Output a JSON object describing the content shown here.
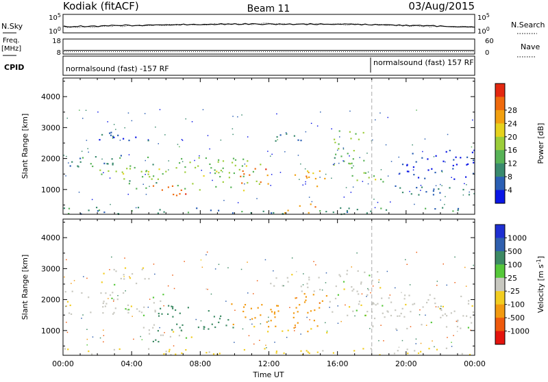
{
  "header": {
    "radar": "Kodiak (fitACF)",
    "beam": "Beam 11",
    "date": "03/Aug/2015"
  },
  "top_panel": {
    "left_label": "N.Sky",
    "left_ticks": [
      "10^5",
      "10^0"
    ],
    "right_ticks": [
      "10^5",
      "10^0"
    ],
    "right_label": "N.Search"
  },
  "freq_panel": {
    "left_label_1": "Freq.",
    "left_label_2": "[MHz]",
    "left_ticks": [
      "18",
      "8"
    ],
    "right_ticks": [
      "60",
      "0"
    ],
    "right_label": "Nave"
  },
  "cpid_panel": {
    "label": "CPID",
    "program_1": "normalsound (fast) -157 RF",
    "program_2": "normalsound (fast) 157 RF"
  },
  "chart_data": [
    {
      "type": "heatmap",
      "quantity": "Power",
      "ylabel": "Slant Range [km]",
      "xlabel": "",
      "ylim": [
        200,
        4600
      ],
      "xlim": [
        0,
        24
      ],
      "yticks": [
        "1000",
        "2000",
        "3000",
        "4000"
      ],
      "colorbar_label": "Power [dB]",
      "colorbar_ticks": [
        "4",
        "8",
        "12",
        "16",
        "20",
        "24",
        "28"
      ],
      "colorbar_colors": [
        "#0a16e6",
        "#2b5fb4",
        "#3a8a6e",
        "#58b357",
        "#9ccd3a",
        "#e6d21e",
        "#f2a010",
        "#ef6a0d",
        "#e42810"
      ],
      "bands": [
        {
          "t0": 0.0,
          "t1": 5.5,
          "r0": 1700,
          "r1": 2150,
          "v": 10
        },
        {
          "t0": 1.2,
          "t1": 5.8,
          "r0": 1350,
          "r1": 1750,
          "v": 16
        },
        {
          "t0": 3.5,
          "t1": 5.5,
          "r0": 1050,
          "r1": 1350,
          "v": 12
        },
        {
          "t0": 5.2,
          "t1": 7.2,
          "r0": 650,
          "r1": 1150,
          "v": 27
        },
        {
          "t0": 4.2,
          "t1": 6.2,
          "r0": 1350,
          "r1": 1700,
          "v": 14
        },
        {
          "t0": 6.5,
          "t1": 11.5,
          "r0": 950,
          "r1": 2050,
          "v": 15
        },
        {
          "t0": 10.2,
          "t1": 12.2,
          "r0": 1100,
          "r1": 1700,
          "v": 24
        },
        {
          "t0": 13.3,
          "t1": 15.4,
          "r0": 1050,
          "r1": 1650,
          "v": 22
        },
        {
          "t0": 12.0,
          "t1": 14.5,
          "r0": 2500,
          "r1": 2850,
          "v": 10
        },
        {
          "t0": 15.5,
          "t1": 17.5,
          "r0": 1700,
          "r1": 3000,
          "v": 13
        },
        {
          "t0": 16.8,
          "t1": 19.5,
          "r0": 1200,
          "r1": 1600,
          "v": 15
        },
        {
          "t0": 18.0,
          "t1": 24.0,
          "r0": 850,
          "r1": 1150,
          "v": 8
        },
        {
          "t0": 19.5,
          "t1": 24.0,
          "r0": 1350,
          "r1": 2300,
          "v": 5
        },
        {
          "t0": 0.0,
          "t1": 24.0,
          "r0": 220,
          "r1": 450,
          "v": 10
        },
        {
          "t0": 12.5,
          "t1": 14.8,
          "r0": 250,
          "r1": 550,
          "v": 22
        },
        {
          "t0": 2.0,
          "t1": 5.0,
          "r0": 2600,
          "r1": 3100,
          "v": 6
        }
      ]
    },
    {
      "type": "heatmap",
      "quantity": "Velocity",
      "ylabel": "Slant Range [km]",
      "xlabel": "Time UT",
      "ylim": [
        200,
        4600
      ],
      "xlim": [
        0,
        24
      ],
      "yticks": [
        "1000",
        "2000",
        "3000",
        "4000"
      ],
      "xticks": [
        "00:00",
        "04:00",
        "08:00",
        "12:00",
        "16:00",
        "20:00",
        "00:00"
      ],
      "colorbar_label": "Velocity [m s^-1]",
      "colorbar_ticks": [
        "1000",
        "500",
        "100",
        "25",
        "-25",
        "-100",
        "-500",
        "-1000"
      ],
      "colorbar_colors": [
        "#1e2fd2",
        "#2f5fae",
        "#3d8a64",
        "#56c83a",
        "#c8c8c0",
        "#f2cd20",
        "#f29a10",
        "#ef5a0d",
        "#e4140d"
      ],
      "bands": [
        {
          "t0": 0.0,
          "t1": 6.0,
          "r0": 1500,
          "r1": 2300,
          "v": 0
        },
        {
          "t0": 4.5,
          "t1": 7.5,
          "r0": 750,
          "r1": 1250,
          "v": 0
        },
        {
          "t0": 5.5,
          "t1": 8.8,
          "r0": 950,
          "r1": 1850,
          "v": 250
        },
        {
          "t0": 4.5,
          "t1": 6.5,
          "r0": 650,
          "r1": 850,
          "v": 80
        },
        {
          "t0": 8.5,
          "t1": 10.5,
          "r0": 1050,
          "r1": 1500,
          "v": 80
        },
        {
          "t0": 9.5,
          "t1": 12.8,
          "r0": 1150,
          "r1": 1950,
          "v": -250
        },
        {
          "t0": 13.2,
          "t1": 15.5,
          "r0": 1150,
          "r1": 2250,
          "v": -250
        },
        {
          "t0": 10.5,
          "t1": 15.5,
          "r0": 950,
          "r1": 1150,
          "v": -60
        },
        {
          "t0": 12.0,
          "t1": 15.0,
          "r0": 2250,
          "r1": 2850,
          "v": 0
        },
        {
          "t0": 15.5,
          "t1": 18.5,
          "r0": 1500,
          "r1": 3000,
          "v": 0
        },
        {
          "t0": 18.0,
          "t1": 24.0,
          "r0": 1050,
          "r1": 2200,
          "v": 0
        },
        {
          "t0": 0.0,
          "t1": 24.0,
          "r0": 220,
          "r1": 450,
          "v": -30
        },
        {
          "t0": 2.0,
          "t1": 5.0,
          "r0": 2500,
          "r1": 3100,
          "v": 0
        }
      ]
    }
  ]
}
